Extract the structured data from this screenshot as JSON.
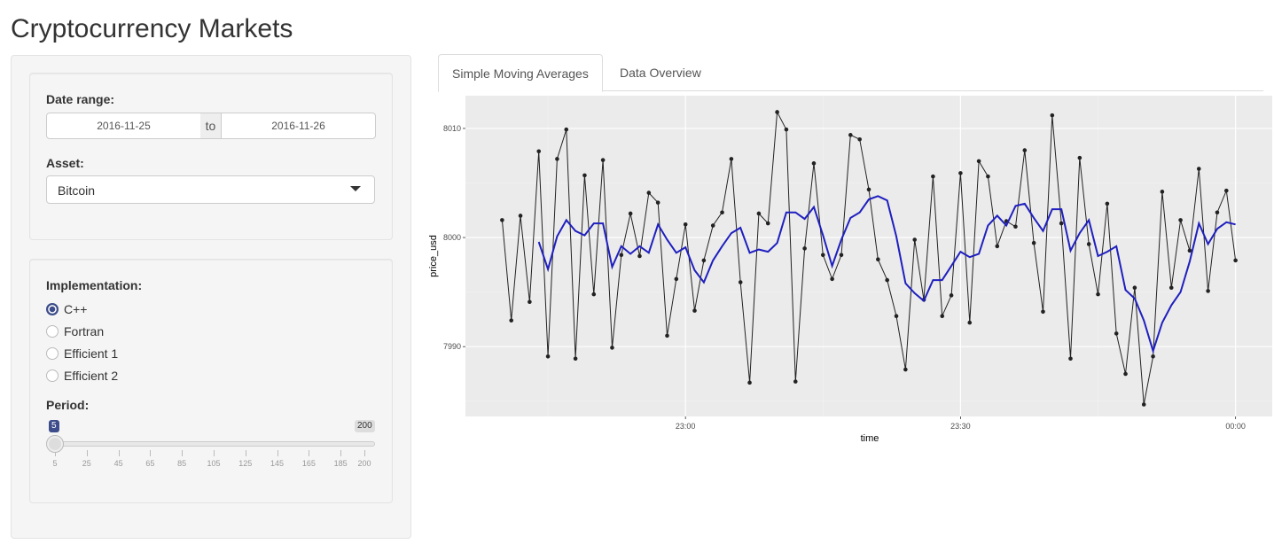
{
  "header": {
    "title": "Cryptocurrency Markets"
  },
  "sidebar": {
    "date_range": {
      "label": "Date range:",
      "start": "2016-11-25",
      "separator": "to",
      "end": "2016-11-26"
    },
    "asset": {
      "label": "Asset:",
      "value": "Bitcoin"
    },
    "implementation": {
      "label": "Implementation:",
      "options": [
        "C++",
        "Fortran",
        "Efficient 1",
        "Efficient 2"
      ],
      "selected": 0
    },
    "period": {
      "label": "Period:",
      "min": 5,
      "max": 200,
      "value": 5,
      "ticks": [
        5,
        25,
        45,
        65,
        85,
        105,
        125,
        145,
        165,
        185,
        200
      ]
    }
  },
  "tabs": {
    "items": [
      "Simple Moving Averages",
      "Data Overview"
    ],
    "active": 0
  },
  "chart_data": {
    "type": "line",
    "x_label": "time",
    "y_label": "price_usd",
    "x": [
      "22:40",
      "22:41",
      "22:42",
      "22:43",
      "22:44",
      "22:45",
      "22:46",
      "22:47",
      "22:48",
      "22:49",
      "22:50",
      "22:51",
      "22:52",
      "22:53",
      "22:54",
      "22:55",
      "22:56",
      "22:57",
      "22:58",
      "22:59",
      "23:00",
      "23:01",
      "23:02",
      "23:03",
      "23:04",
      "23:05",
      "23:06",
      "23:07",
      "23:08",
      "23:09",
      "23:10",
      "23:11",
      "23:12",
      "23:13",
      "23:14",
      "23:15",
      "23:16",
      "23:17",
      "23:18",
      "23:19",
      "23:20",
      "23:21",
      "23:22",
      "23:23",
      "23:24",
      "23:25",
      "23:26",
      "23:27",
      "23:28",
      "23:29",
      "23:30",
      "23:31",
      "23:32",
      "23:33",
      "23:34",
      "23:35",
      "23:36",
      "23:37",
      "23:38",
      "23:39",
      "23:40",
      "23:41",
      "23:42",
      "23:43",
      "23:44",
      "23:45",
      "23:46",
      "23:47",
      "23:48",
      "23:49",
      "23:50",
      "23:51",
      "23:52",
      "23:53",
      "23:54",
      "23:55",
      "23:56",
      "23:57",
      "23:58",
      "23:59",
      "00:00"
    ],
    "series": [
      {
        "color": "#222222",
        "markers": true,
        "values": [
          8001.6,
          7992.4,
          8002.0,
          7994.1,
          8007.9,
          7989.1,
          8007.2,
          8009.9,
          7988.9,
          8005.7,
          7994.8,
          8007.1,
          7989.9,
          7998.4,
          8002.2,
          7998.3,
          8004.1,
          8003.2,
          7991.0,
          7996.2,
          8001.2,
          7993.3,
          7997.9,
          8001.1,
          8002.3,
          8007.2,
          7995.9,
          7986.7,
          8002.2,
          8001.3,
          8011.5,
          8009.9,
          7986.8,
          7999.0,
          8006.8,
          7998.4,
          7996.2,
          7998.4,
          8009.4,
          8009.0,
          8004.4,
          7998.0,
          7996.1,
          7992.8,
          7987.9,
          7999.8,
          7994.3,
          8005.6,
          7992.8,
          7994.7,
          8005.9,
          7992.2,
          8007.0,
          8005.6,
          7999.2,
          8001.5,
          8001.0,
          8008.0,
          7999.5,
          7993.2,
          8011.2,
          8001.3,
          7988.9,
          8007.3,
          7999.4,
          7994.8,
          8003.1,
          7991.2,
          7987.5,
          7995.4,
          7984.7,
          7989.1,
          8004.2,
          7995.4,
          8001.6,
          7998.8,
          8006.3,
          7995.1,
          8002.3,
          8004.3,
          7997.9
        ]
      },
      {
        "color": "#1f1fbf",
        "markers": false,
        "values": [
          null,
          null,
          null,
          null,
          7999.6,
          7997.1,
          8000.1,
          8001.6,
          8000.6,
          8000.2,
          8001.3,
          8001.3,
          7997.3,
          7999.2,
          7998.5,
          7999.2,
          7998.6,
          8001.2,
          7999.8,
          7998.6,
          7999.1,
          7997.0,
          7995.9,
          7997.9,
          7999.2,
          8000.4,
          8000.9,
          7998.6,
          7998.9,
          7998.7,
          7999.5,
          8002.3,
          8002.3,
          8001.7,
          8002.8,
          8000.2,
          7997.4,
          7999.8,
          8001.8,
          8002.3,
          8003.5,
          8003.8,
          8003.4,
          8000.1,
          7995.8,
          7994.9,
          7994.2,
          7996.1,
          7996.1,
          7997.4,
          7998.7,
          7998.2,
          7998.5,
          8001.1,
          8002.0,
          8001.1,
          8002.9,
          8003.1,
          8001.8,
          8000.6,
          8002.6,
          8002.6,
          7998.8,
          8000.4,
          8001.6,
          7998.3,
          7998.7,
          7999.2,
          7995.2,
          7994.4,
          7992.4,
          7989.6,
          7992.2,
          7993.8,
          7995.0,
          7997.8,
          8001.3,
          7999.4,
          8000.8,
          8001.4,
          8001.2
        ]
      }
    ],
    "xlim": [
      "22:36",
      "00:04"
    ],
    "xticks": [
      "23:00",
      "23:30",
      "00:00"
    ],
    "ylim": [
      7983.6,
      8013.0
    ],
    "yticks": [
      7990,
      8000,
      8010
    ],
    "grid": true,
    "background": "#ebebeb"
  }
}
